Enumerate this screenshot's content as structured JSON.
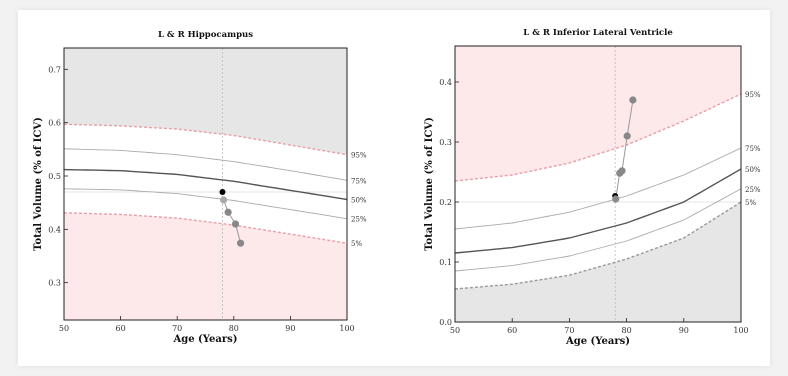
{
  "chart_data": [
    {
      "type": "line",
      "title": "L & R Hippocampus",
      "xlabel": "Age (Years)",
      "ylabel": "Total Volume (% of ICV)",
      "xlim": [
        50,
        100
      ],
      "ylim": [
        0.23,
        0.74
      ],
      "xticks": [
        50,
        60,
        70,
        80,
        90,
        100
      ],
      "yticks": [
        0.3,
        0.4,
        0.5,
        0.6,
        0.7
      ],
      "ytick_labels": [
        "0.3",
        "0.4",
        "0.5",
        "0.6",
        "0.7"
      ],
      "upper_region": "#e6e6e6",
      "lower_region": "#fde8ea",
      "vline_x": 78,
      "hline_y": 0.47,
      "percentiles": [
        {
          "label": "95%",
          "style": "dashed-red",
          "values": [
            [
              50,
              0.597
            ],
            [
              60,
              0.594
            ],
            [
              70,
              0.588
            ],
            [
              80,
              0.576
            ],
            [
              90,
              0.558
            ],
            [
              100,
              0.54
            ]
          ]
        },
        {
          "label": "75%",
          "style": "thin",
          "values": [
            [
              50,
              0.551
            ],
            [
              60,
              0.548
            ],
            [
              70,
              0.54
            ],
            [
              80,
              0.527
            ],
            [
              90,
              0.51
            ],
            [
              100,
              0.492
            ]
          ]
        },
        {
          "label": "50%",
          "style": "solid",
          "values": [
            [
              50,
              0.512
            ],
            [
              60,
              0.51
            ],
            [
              70,
              0.503
            ],
            [
              80,
              0.49
            ],
            [
              90,
              0.473
            ],
            [
              100,
              0.456
            ]
          ]
        },
        {
          "label": "25%",
          "style": "thin",
          "values": [
            [
              50,
              0.476
            ],
            [
              60,
              0.474
            ],
            [
              70,
              0.467
            ],
            [
              80,
              0.454
            ],
            [
              90,
              0.437
            ],
            [
              100,
              0.42
            ]
          ]
        },
        {
          "label": "5%",
          "style": "dashed-red",
          "values": [
            [
              50,
              0.431
            ],
            [
              60,
              0.428
            ],
            [
              70,
              0.421
            ],
            [
              80,
              0.408
            ],
            [
              90,
              0.391
            ],
            [
              100,
              0.374
            ]
          ]
        }
      ],
      "subject_points": [
        {
          "x": 78,
          "y": 0.47,
          "color": "#000000"
        },
        {
          "x": 78.2,
          "y": 0.455,
          "color": "#aaaaaa"
        },
        {
          "x": 79,
          "y": 0.432,
          "color": "#888888"
        },
        {
          "x": 80.3,
          "y": 0.41,
          "color": "#888888"
        },
        {
          "x": 81.2,
          "y": 0.374,
          "color": "#888888"
        }
      ]
    },
    {
      "type": "line",
      "title": "L & R Inferior Lateral Ventricle",
      "xlabel": "Age (Years)",
      "ylabel": "Total Volume (% of ICV)",
      "xlim": [
        50,
        100
      ],
      "ylim": [
        0,
        0.46
      ],
      "xticks": [
        50,
        60,
        70,
        80,
        90,
        100
      ],
      "yticks": [
        0,
        0.1,
        0.2,
        0.3,
        0.4
      ],
      "ytick_labels": [
        "0.0",
        "0.1",
        "0.2",
        "0.3",
        "0.4"
      ],
      "upper_region": "#fde8ea",
      "lower_region": "#e6e6e6",
      "vline_x": 78,
      "hline_y": 0.2,
      "percentiles": [
        {
          "label": "95%",
          "style": "dashed-red",
          "values": [
            [
              50,
              0.235
            ],
            [
              60,
              0.245
            ],
            [
              70,
              0.265
            ],
            [
              80,
              0.295
            ],
            [
              90,
              0.335
            ],
            [
              100,
              0.38
            ]
          ]
        },
        {
          "label": "75%",
          "style": "thin",
          "values": [
            [
              50,
              0.155
            ],
            [
              60,
              0.165
            ],
            [
              70,
              0.183
            ],
            [
              80,
              0.21
            ],
            [
              90,
              0.245
            ],
            [
              100,
              0.29
            ]
          ]
        },
        {
          "label": "50%",
          "style": "solid",
          "values": [
            [
              50,
              0.115
            ],
            [
              60,
              0.124
            ],
            [
              70,
              0.14
            ],
            [
              80,
              0.165
            ],
            [
              90,
              0.2
            ],
            [
              100,
              0.255
            ]
          ]
        },
        {
          "label": "25%",
          "style": "thin",
          "values": [
            [
              50,
              0.085
            ],
            [
              60,
              0.094
            ],
            [
              70,
              0.11
            ],
            [
              80,
              0.135
            ],
            [
              90,
              0.17
            ],
            [
              100,
              0.222
            ]
          ]
        },
        {
          "label": "5%",
          "style": "dashed-gray",
          "values": [
            [
              50,
              0.055
            ],
            [
              60,
              0.063
            ],
            [
              70,
              0.078
            ],
            [
              80,
              0.105
            ],
            [
              90,
              0.14
            ],
            [
              100,
              0.2
            ]
          ]
        }
      ],
      "subject_points": [
        {
          "x": 78,
          "y": 0.21,
          "color": "#000000"
        },
        {
          "x": 78.1,
          "y": 0.205,
          "color": "#888888"
        },
        {
          "x": 78.8,
          "y": 0.248,
          "color": "#888888"
        },
        {
          "x": 79.2,
          "y": 0.252,
          "color": "#888888"
        },
        {
          "x": 80.1,
          "y": 0.31,
          "color": "#888888"
        },
        {
          "x": 81.1,
          "y": 0.37,
          "color": "#888888"
        }
      ]
    }
  ]
}
